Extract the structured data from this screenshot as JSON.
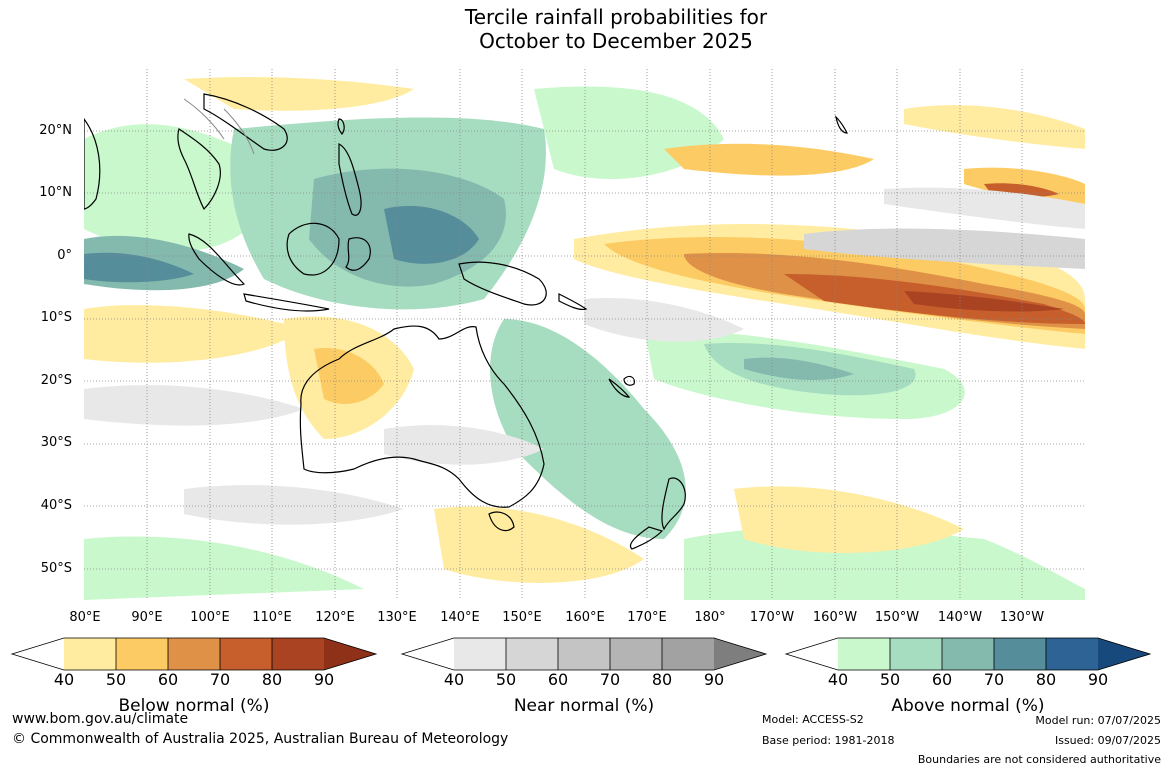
{
  "title": {
    "line1": "Tercile rainfall probabilities for",
    "line2": "October to December 2025"
  },
  "map": {
    "lat_labels": [
      "20°N",
      "10°N",
      "0°",
      "10°S",
      "20°S",
      "30°S",
      "40°S",
      "50°S"
    ],
    "lon_labels": [
      "80°E",
      "90°E",
      "100°E",
      "110°E",
      "120°E",
      "130°E",
      "140°E",
      "150°E",
      "160°E",
      "170°E",
      "180°",
      "170°W",
      "160°W",
      "150°W",
      "140°W",
      "130°W"
    ]
  },
  "legends": [
    {
      "title": "Below normal (%)",
      "ticks": [
        "40",
        "50",
        "60",
        "70",
        "80",
        "90"
      ],
      "colors": [
        "#ffffff",
        "#ffeca0",
        "#fdcb63",
        "#df9148",
        "#c75f2c",
        "#a94322",
        "#8f3019"
      ]
    },
    {
      "title": "Near normal (%)",
      "ticks": [
        "40",
        "50",
        "60",
        "70",
        "80",
        "90"
      ],
      "colors": [
        "#ffffff",
        "#e8e8e8",
        "#d6d6d6",
        "#c4c4c4",
        "#b4b4b4",
        "#a2a2a2",
        "#7e7e7e"
      ]
    },
    {
      "title": "Above normal (%)",
      "ticks": [
        "40",
        "50",
        "60",
        "70",
        "80",
        "90"
      ],
      "colors": [
        "#ffffff",
        "#c8f8cc",
        "#a6dcc0",
        "#84b9ad",
        "#558d9b",
        "#2e6495",
        "#18497c"
      ]
    }
  ],
  "footer": {
    "website": "www.bom.gov.au/climate",
    "copyright": "© Commonwealth of Australia 2025, Australian Bureau of Meteorology",
    "model": "Model: ACCESS-S2",
    "base_period": "Base period: 1981-2018",
    "model_run": "Model run: 07/07/2025",
    "issued": "Issued: 09/07/2025",
    "boundaries": "Boundaries are not considered authoritative"
  }
}
